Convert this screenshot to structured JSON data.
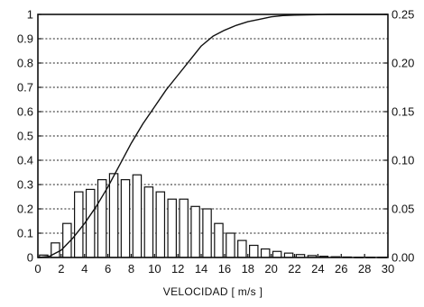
{
  "chart_data": {
    "type": "bar",
    "xlabel": "VELOCIDAD [ m/s ]",
    "x_ticks": [
      "0",
      "2",
      "4",
      "6",
      "8",
      "10",
      "12",
      "14",
      "16",
      "18",
      "20",
      "22",
      "24",
      "26",
      "28",
      "30"
    ],
    "x_range": [
      0,
      30
    ],
    "y_left_ticks": [
      "0",
      "0.1",
      "0.2",
      "0.3",
      "0.4",
      "0.5",
      "0.6",
      "0.7",
      "0.8",
      "0.9",
      "1"
    ],
    "y_left_range": [
      0,
      1
    ],
    "y_right_ticks": [
      "0.00",
      "0.05",
      "0.10",
      "0.15",
      "0.20",
      "0.25"
    ],
    "y_right_range": [
      0,
      0.25
    ],
    "grid": "horizontal dotted",
    "series": [
      {
        "type": "bar",
        "axis": "left",
        "x": [
          0,
          1,
          2,
          3,
          4,
          5,
          6,
          7,
          8,
          9,
          10,
          11,
          12,
          13,
          14,
          15,
          16,
          17,
          18,
          19,
          20,
          21,
          22,
          23,
          24,
          25,
          26,
          27,
          28,
          29
        ],
        "values": [
          0.01,
          0.06,
          0.14,
          0.27,
          0.28,
          0.32,
          0.345,
          0.32,
          0.34,
          0.29,
          0.27,
          0.24,
          0.24,
          0.21,
          0.2,
          0.14,
          0.1,
          0.07,
          0.05,
          0.035,
          0.025,
          0.018,
          0.012,
          0.008,
          0.005,
          0.003,
          0.002,
          0.001,
          0.001,
          0.001
        ]
      },
      {
        "type": "line",
        "axis": "left",
        "x": [
          0,
          1,
          2,
          3,
          4,
          5,
          6,
          7,
          8,
          9,
          10,
          11,
          12,
          13,
          14,
          15,
          16,
          17,
          18,
          19,
          20,
          21,
          22,
          23,
          24,
          25,
          26,
          27,
          28,
          29,
          30
        ],
        "values": [
          0.0,
          0.005,
          0.03,
          0.08,
          0.14,
          0.21,
          0.29,
          0.38,
          0.47,
          0.55,
          0.62,
          0.69,
          0.75,
          0.81,
          0.87,
          0.91,
          0.935,
          0.955,
          0.97,
          0.98,
          0.99,
          0.995,
          0.997,
          0.998,
          0.999,
          1.0,
          1.0,
          1.0,
          1.0,
          1.0,
          1.0
        ]
      }
    ]
  }
}
